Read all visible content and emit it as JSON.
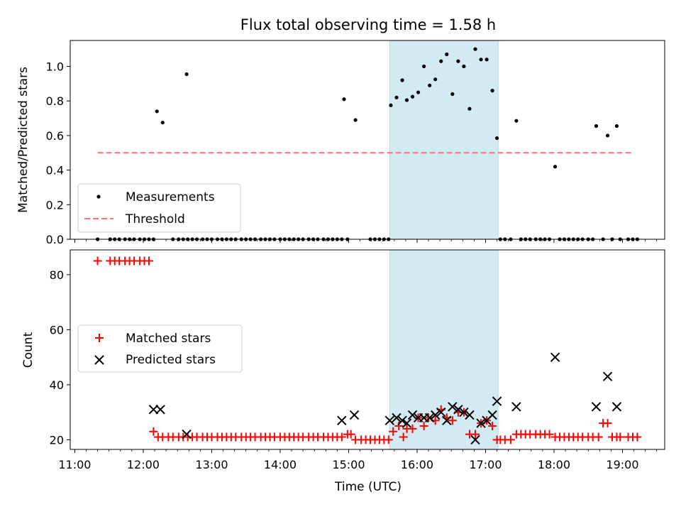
{
  "chart_data": [
    {
      "type": "scatter",
      "panel": "top",
      "title": "Flux total observing time = 1.58 h",
      "xlabel": "",
      "ylabel": "Matched/Predicted stars",
      "ylim": [
        0,
        1.15
      ],
      "xlim": [
        "10:56",
        "19:37"
      ],
      "yticks": [
        0.0,
        0.2,
        0.4,
        0.6,
        0.8,
        1.0
      ],
      "yticklabels": [
        "0.0",
        "0.2",
        "0.4",
        "0.6",
        "0.8",
        "1.0"
      ],
      "grid": false,
      "legend_position": "lower-left",
      "highlight_span": {
        "from": "15:36",
        "to": "17:11",
        "color": "#add8e6"
      },
      "series": [
        {
          "name": "Measurements",
          "marker": "dot",
          "color": "#000000",
          "x": [
            "11:20",
            "11:31",
            "11:35",
            "11:39",
            "11:44",
            "11:48",
            "11:52",
            "11:57",
            "12:01",
            "12:05",
            "12:09",
            "12:26",
            "12:31",
            "12:35",
            "12:39",
            "12:43",
            "12:47",
            "12:52",
            "12:56",
            "13:00",
            "13:05",
            "13:09",
            "13:13",
            "13:17",
            "13:21",
            "13:26",
            "13:30",
            "13:34",
            "13:38",
            "13:43",
            "13:47",
            "13:51",
            "13:55",
            "14:00",
            "14:04",
            "14:08",
            "14:12",
            "14:16",
            "14:20",
            "14:25",
            "14:29",
            "14:33",
            "14:38",
            "14:42",
            "14:46",
            "14:50",
            "14:54",
            "14:59",
            "15:19",
            "15:23",
            "15:27",
            "15:31",
            "15:35",
            "12:12",
            "12:17",
            "12:38",
            "14:56",
            "15:06",
            "15:37",
            "15:42",
            "15:47",
            "15:51",
            "15:56",
            "16:01",
            "16:06",
            "16:11",
            "16:16",
            "16:21",
            "16:26",
            "16:31",
            "16:36",
            "16:41",
            "16:46",
            "16:51",
            "16:56",
            "17:01",
            "17:06",
            "17:10",
            "17:13",
            "17:17",
            "17:22",
            "17:31",
            "17:35",
            "17:39",
            "17:44",
            "17:48",
            "17:52",
            "17:56",
            "18:05",
            "18:09",
            "18:13",
            "18:17",
            "18:21",
            "18:25",
            "18:30",
            "18:34",
            "18:43",
            "18:51",
            "18:58",
            "19:05",
            "19:09",
            "19:13",
            "17:27",
            "18:01",
            "18:37",
            "18:47",
            "18:55"
          ],
          "y": [
            0,
            0,
            0,
            0,
            0,
            0,
            0,
            0,
            0,
            0,
            0,
            0,
            0,
            0,
            0,
            0,
            0,
            0,
            0,
            0,
            0,
            0,
            0,
            0,
            0,
            0,
            0,
            0,
            0,
            0,
            0,
            0,
            0,
            0,
            0,
            0,
            0,
            0,
            0,
            0,
            0,
            0,
            0,
            0,
            0,
            0,
            0,
            0,
            0,
            0,
            0,
            0,
            0,
            0.74,
            0.675,
            0.955,
            0.81,
            0.69,
            0.775,
            0.82,
            0.92,
            0.805,
            0.825,
            0.85,
            1.0,
            0.89,
            0.925,
            1.03,
            1.07,
            0.84,
            1.03,
            1.0,
            0.755,
            1.1,
            1.04,
            1.04,
            0.86,
            0.585,
            0,
            0,
            0,
            0,
            0,
            0,
            0,
            0,
            0,
            0,
            0,
            0,
            0,
            0,
            0,
            0,
            0,
            0,
            0,
            0,
            0,
            0,
            0,
            0,
            0.685,
            0.42,
            0.655,
            0.6,
            0.655
          ]
        },
        {
          "name": "Threshold",
          "style": "dashed",
          "color": "#ff7070",
          "x": [
            "11:20",
            "19:08"
          ],
          "y": [
            0.5,
            0.5
          ]
        }
      ]
    },
    {
      "type": "scatter",
      "panel": "bottom",
      "xlabel": "Time (UTC)",
      "ylabel": "Count",
      "ylim": [
        16.5,
        89
      ],
      "xlim": [
        "10:56",
        "19:37"
      ],
      "yticks": [
        20,
        40,
        60,
        80
      ],
      "yticklabels": [
        "20",
        "40",
        "60",
        "80"
      ],
      "xticks": [
        "11:00",
        "12:00",
        "13:00",
        "14:00",
        "15:00",
        "16:00",
        "17:00",
        "18:00",
        "19:00"
      ],
      "grid": false,
      "legend_position": "center-left",
      "highlight_span": {
        "from": "15:36",
        "to": "17:11",
        "color": "#add8e6"
      },
      "series": [
        {
          "name": "Matched stars",
          "marker": "plus",
          "color": "#ff0000",
          "x": [
            "11:20",
            "11:31",
            "11:35",
            "11:39",
            "11:44",
            "11:48",
            "11:52",
            "11:57",
            "12:01",
            "12:05",
            "12:09",
            "12:13",
            "12:17",
            "12:22",
            "12:26",
            "12:31",
            "12:35",
            "12:39",
            "12:43",
            "12:47",
            "12:52",
            "12:56",
            "13:00",
            "13:05",
            "13:09",
            "13:13",
            "13:17",
            "13:21",
            "13:26",
            "13:30",
            "13:34",
            "13:38",
            "13:43",
            "13:47",
            "13:51",
            "13:55",
            "14:00",
            "14:04",
            "14:08",
            "14:12",
            "14:16",
            "14:20",
            "14:25",
            "14:29",
            "14:33",
            "14:38",
            "14:42",
            "14:46",
            "14:50",
            "14:54",
            "14:59",
            "15:02",
            "15:06",
            "15:11",
            "15:15",
            "15:19",
            "15:23",
            "15:27",
            "15:31",
            "15:35",
            "15:39",
            "15:44",
            "15:48",
            "15:51",
            "15:56",
            "16:01",
            "16:06",
            "16:10",
            "16:16",
            "16:21",
            "16:26",
            "16:31",
            "16:36",
            "16:41",
            "16:46",
            "16:51",
            "16:56",
            "17:01",
            "17:06",
            "17:10",
            "17:13",
            "17:17",
            "17:22",
            "17:27",
            "17:31",
            "17:35",
            "17:39",
            "17:44",
            "17:48",
            "17:52",
            "17:56",
            "18:01",
            "18:05",
            "18:09",
            "18:13",
            "18:17",
            "18:21",
            "18:25",
            "18:30",
            "18:34",
            "18:39",
            "18:43",
            "18:47",
            "18:51",
            "18:55",
            "18:58",
            "19:05",
            "19:09",
            "19:13"
          ],
          "y": [
            85,
            85,
            85,
            85,
            85,
            85,
            85,
            85,
            85,
            85,
            23,
            21,
            21,
            21,
            21,
            21,
            21,
            21,
            21,
            21,
            21,
            21,
            21,
            21,
            21,
            21,
            21,
            21,
            21,
            21,
            21,
            21,
            21,
            21,
            21,
            21,
            21,
            21,
            21,
            21,
            21,
            21,
            21,
            21,
            21,
            21,
            21,
            21,
            21,
            21,
            22,
            22,
            20,
            20,
            20,
            20,
            20,
            20,
            20,
            20,
            23,
            25,
            21,
            24,
            24,
            28,
            25,
            28,
            27,
            31,
            28,
            27,
            30,
            30,
            22,
            22,
            26,
            27,
            25,
            20,
            20,
            20,
            20,
            22,
            22,
            22,
            22,
            22,
            22,
            22,
            22,
            21,
            21,
            21,
            21,
            21,
            21,
            21,
            21,
            21,
            21,
            26,
            26,
            21,
            21,
            21,
            21,
            21,
            21
          ]
        },
        {
          "name": "Predicted stars",
          "marker": "x",
          "color": "#000000",
          "x": [
            "12:09",
            "12:15",
            "12:38",
            "14:54",
            "15:05",
            "15:36",
            "15:42",
            "15:47",
            "15:51",
            "15:56",
            "16:01",
            "16:06",
            "16:11",
            "16:16",
            "16:21",
            "16:26",
            "16:31",
            "16:36",
            "16:41",
            "16:46",
            "16:51",
            "16:56",
            "17:01",
            "17:06",
            "17:10",
            "17:27",
            "18:01",
            "18:37",
            "18:47",
            "18:55"
          ],
          "y": [
            31,
            31,
            22,
            27,
            29,
            27,
            28,
            27,
            26,
            29,
            28,
            28,
            28,
            29,
            30,
            27,
            32,
            31,
            30,
            29,
            20,
            26,
            27,
            29,
            34,
            32,
            50,
            32,
            43,
            32
          ]
        }
      ]
    }
  ]
}
